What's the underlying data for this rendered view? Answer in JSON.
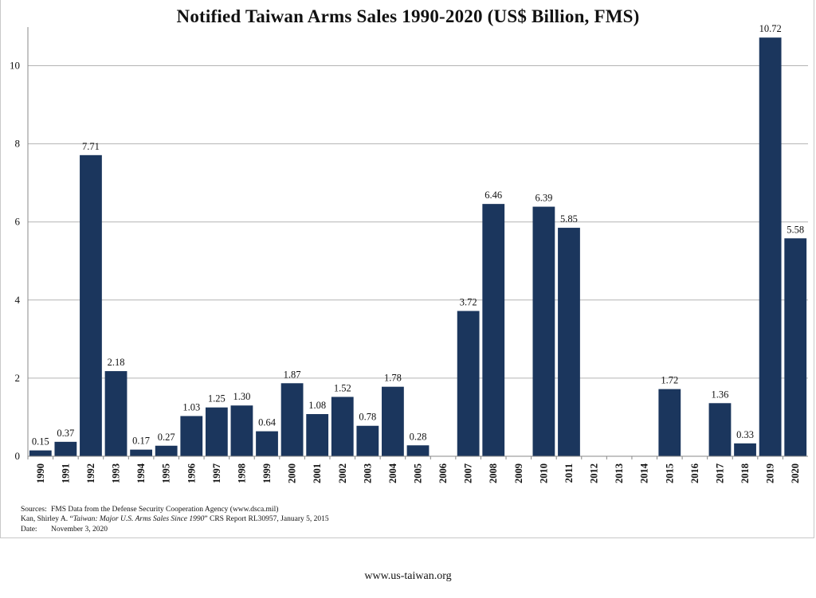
{
  "chart_data": {
    "type": "bar",
    "title": "Notified Taiwan Arms Sales 1990-2020 (US$ Billion, FMS)",
    "xlabel": "",
    "ylabel": "",
    "ylim": [
      0,
      11
    ],
    "yticks": [
      0,
      2,
      4,
      6,
      8,
      10
    ],
    "grid": "horizontal",
    "bar_color": "#1b365d",
    "categories": [
      "1990",
      "1991",
      "1992",
      "1993",
      "1994",
      "1995",
      "1996",
      "1997",
      "1998",
      "1999",
      "2000",
      "2001",
      "2002",
      "2003",
      "2004",
      "2005",
      "2006",
      "2007",
      "2008",
      "2009",
      "2010",
      "2011",
      "2012",
      "2013",
      "2014",
      "2015",
      "2016",
      "2017",
      "2018",
      "2019",
      "2020"
    ],
    "values": [
      0.15,
      0.37,
      7.71,
      2.18,
      0.17,
      0.27,
      1.03,
      1.25,
      1.3,
      0.64,
      1.87,
      1.08,
      1.52,
      0.78,
      1.78,
      0.28,
      null,
      3.72,
      6.46,
      null,
      6.39,
      5.85,
      null,
      null,
      null,
      1.72,
      null,
      1.36,
      0.33,
      10.72,
      5.58
    ],
    "data_labels": [
      "0.15",
      "0.37",
      "7.71",
      "2.18",
      "0.17",
      "0.27",
      "1.03",
      "1.25",
      "1.30",
      "0.64",
      "1.87",
      "1.08",
      "1.52",
      "0.78",
      "1.78",
      "0.28",
      "",
      "3.72",
      "6.46",
      "",
      "6.39",
      "5.85",
      "",
      "",
      "",
      "1.72",
      "",
      "1.36",
      "0.33",
      "10.72",
      "5.58"
    ]
  },
  "notes": {
    "sources_label": "Sources:",
    "source_1": "FMS Data from the Defense Security Cooperation Agency (www.dsca.mil)",
    "source_2_author": "Kan, Shirley A. “",
    "source_2_title": "Taiwan: Major U.S. Arms Sales Since 1990",
    "source_2_rest": "” CRS Report RL30957, January 5, 2015",
    "date_label": "Date:",
    "date_value": "November 3, 2020"
  },
  "footer": {
    "url": "www.us-taiwan.org"
  }
}
